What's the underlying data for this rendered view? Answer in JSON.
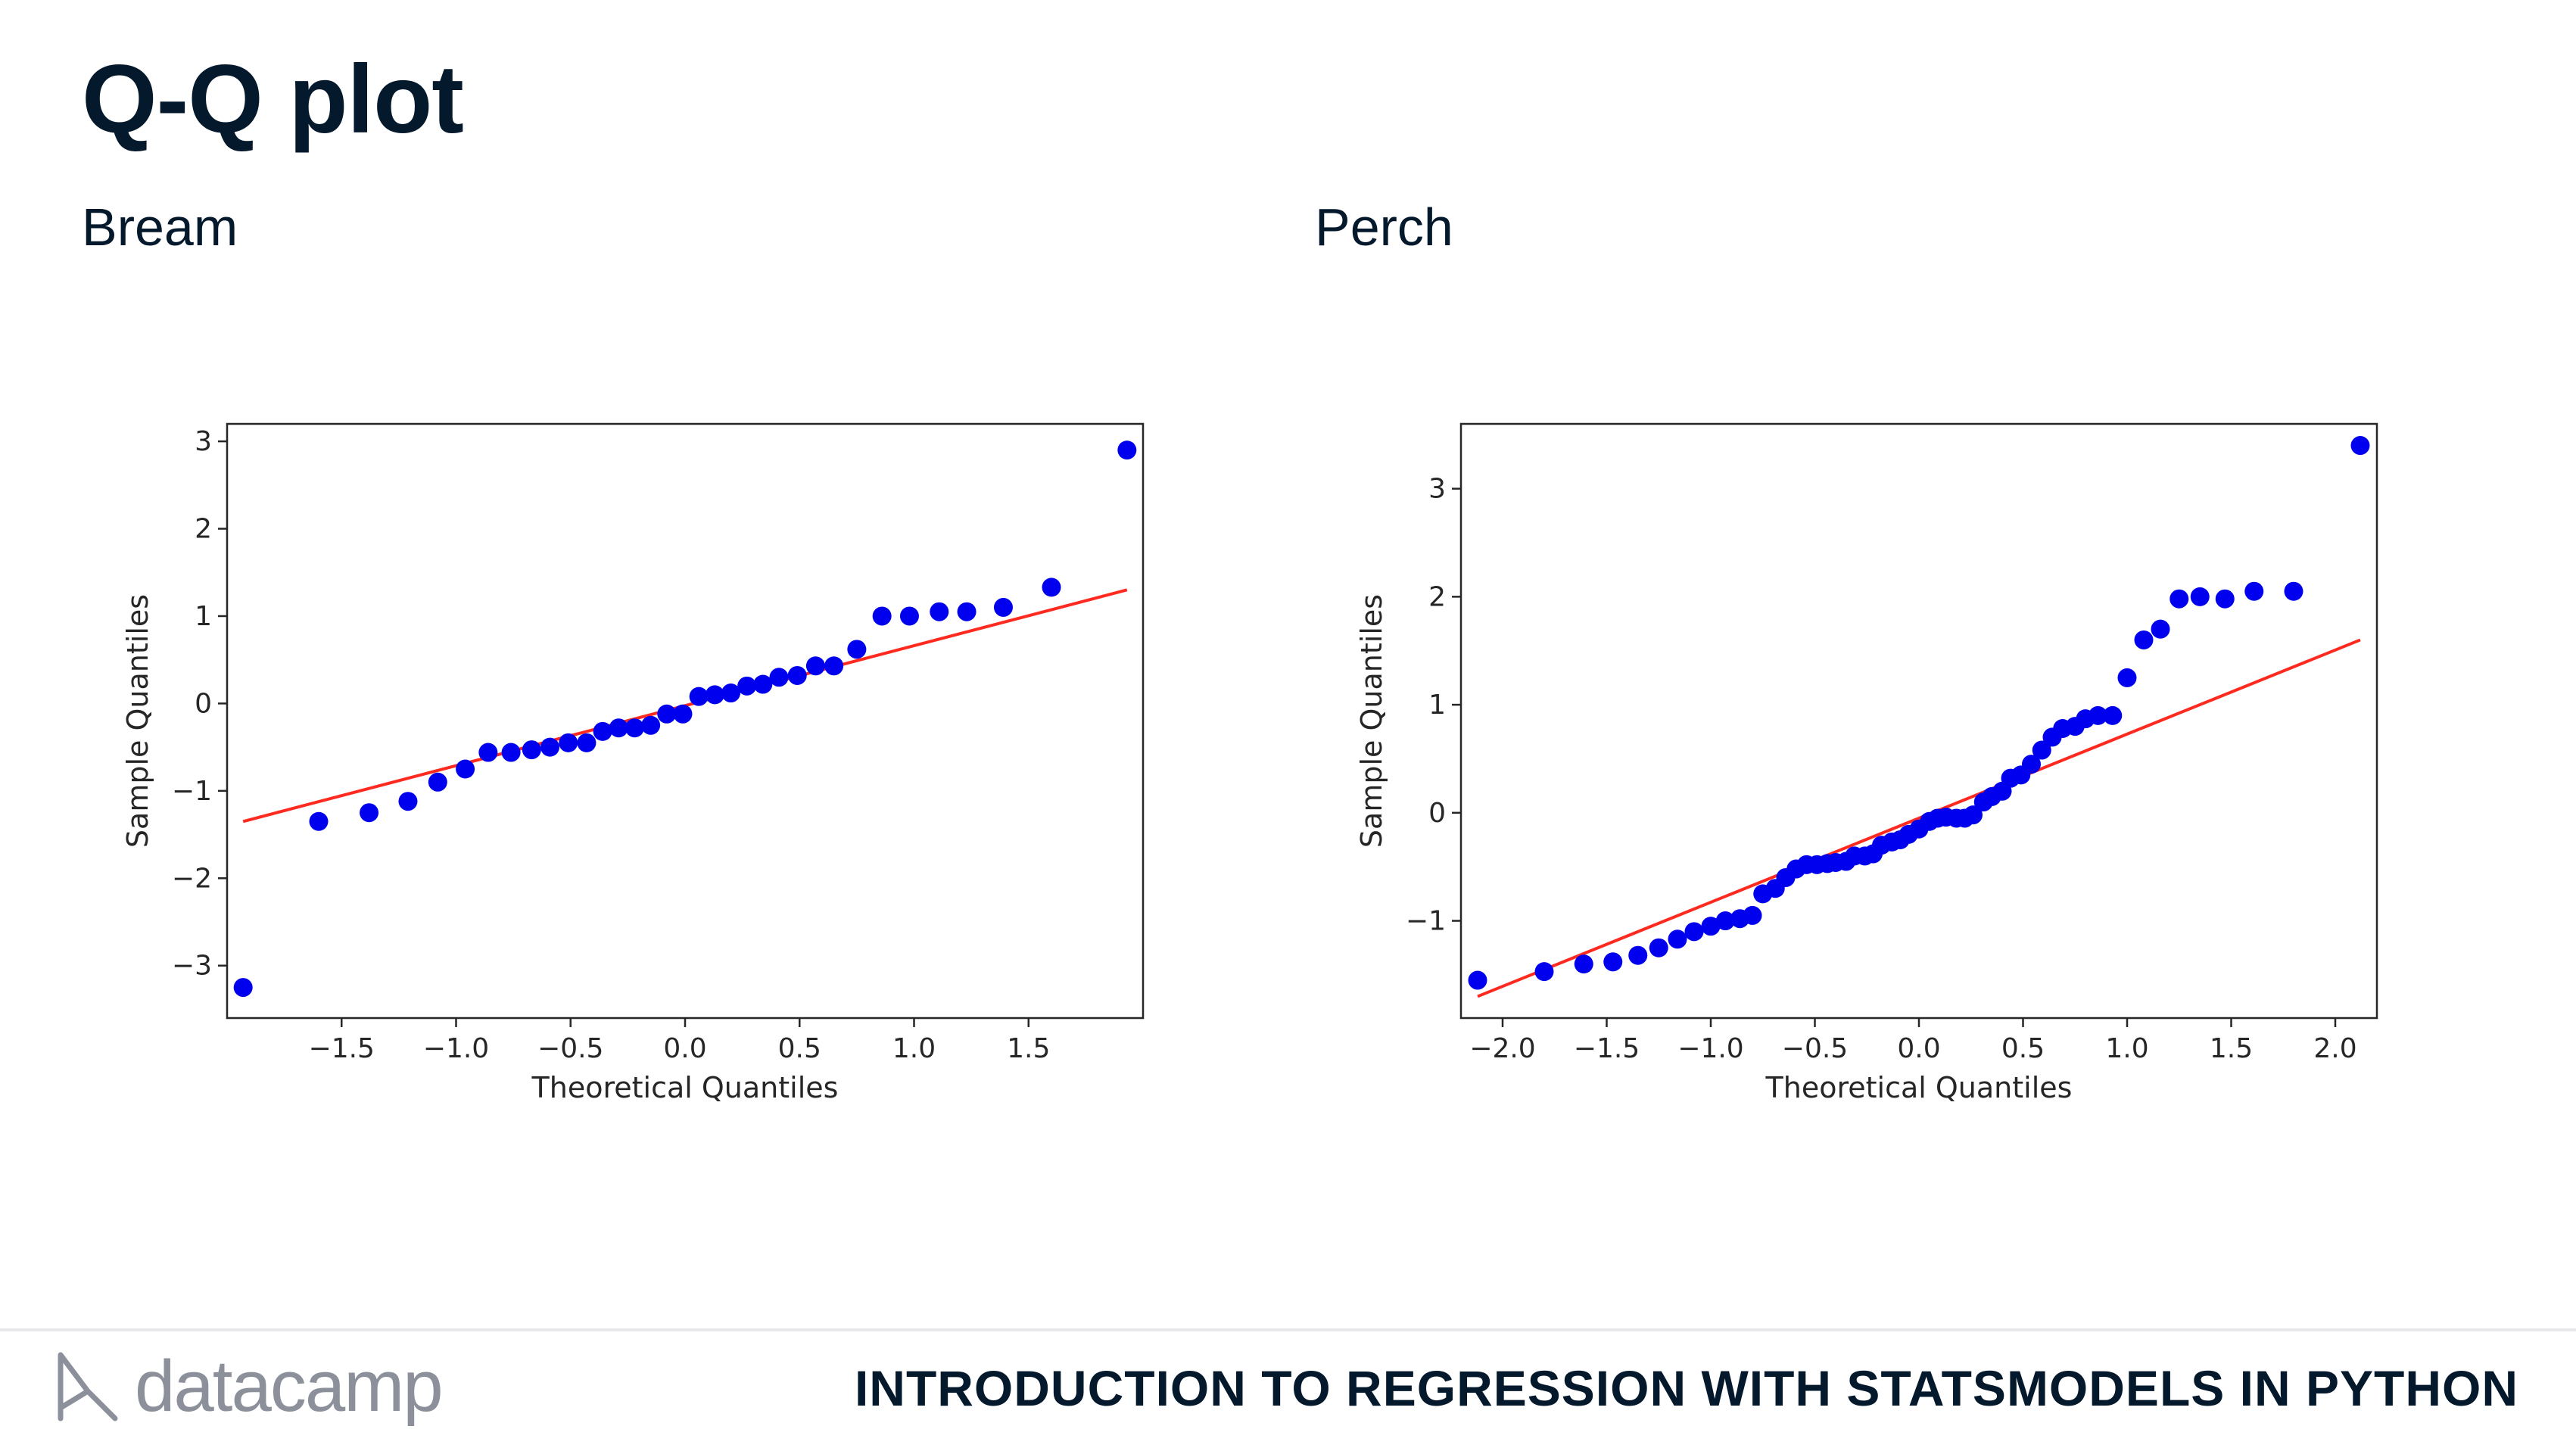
{
  "slide": {
    "title": "Q-Q plot",
    "footer_course": "INTRODUCTION TO REGRESSION WITH STATSMODELS IN PYTHON",
    "brand": "datacamp",
    "brand_icon": "datacamp-logo-icon"
  },
  "colors": {
    "points": "#0000ee",
    "reference_line": "#ff2a1f",
    "text": "#05192d",
    "footer_gray": "#8b909a"
  },
  "chart_data": [
    {
      "type": "scatter",
      "panel_label": "Bream",
      "xlabel": "Theoretical Quantiles",
      "ylabel": "Sample Quantiles",
      "xlim": [
        -2.0,
        2.0
      ],
      "ylim": [
        -3.6,
        3.2
      ],
      "xticks": [
        -1.5,
        -1.0,
        -0.5,
        0.0,
        0.5,
        1.0,
        1.5
      ],
      "xtick_labels": [
        "−1.5",
        "−1.0",
        "−0.5",
        "0.0",
        "0.5",
        "1.0",
        "1.5"
      ],
      "yticks": [
        -3,
        -2,
        -1,
        0,
        1,
        2,
        3
      ],
      "ytick_labels": [
        "−3",
        "−2",
        "−1",
        "0",
        "1",
        "2",
        "3"
      ],
      "reference_line": {
        "x": [
          -1.93,
          1.93
        ],
        "y": [
          -1.35,
          1.3
        ]
      },
      "points": {
        "x": [
          -1.93,
          -1.6,
          -1.38,
          -1.21,
          -1.08,
          -0.96,
          -0.86,
          -0.76,
          -0.67,
          -0.59,
          -0.51,
          -0.43,
          -0.36,
          -0.29,
          -0.22,
          -0.15,
          -0.08,
          -0.01,
          0.06,
          0.13,
          0.2,
          0.27,
          0.34,
          0.41,
          0.49,
          0.57,
          0.65,
          0.75,
          0.86,
          0.98,
          1.11,
          1.23,
          1.39,
          1.6,
          1.93
        ],
        "y": [
          -3.25,
          -1.35,
          -1.25,
          -1.12,
          -0.9,
          -0.75,
          -0.56,
          -0.56,
          -0.53,
          -0.5,
          -0.45,
          -0.45,
          -0.32,
          -0.28,
          -0.28,
          -0.25,
          -0.12,
          -0.12,
          0.08,
          0.1,
          0.12,
          0.2,
          0.22,
          0.3,
          0.32,
          0.43,
          0.43,
          0.62,
          1.0,
          1.0,
          1.05,
          1.05,
          1.1,
          1.33,
          2.9
        ]
      }
    },
    {
      "type": "scatter",
      "panel_label": "Perch",
      "xlabel": "Theoretical Quantiles",
      "ylabel": "Sample Quantiles",
      "xlim": [
        -2.2,
        2.2
      ],
      "ylim": [
        -1.9,
        3.6
      ],
      "xticks": [
        -2.0,
        -1.5,
        -1.0,
        -0.5,
        0.0,
        0.5,
        1.0,
        1.5,
        2.0
      ],
      "xtick_labels": [
        "−2.0",
        "−1.5",
        "−1.0",
        "−0.5",
        "0.0",
        "0.5",
        "1.0",
        "1.5",
        "2.0"
      ],
      "yticks": [
        -1,
        0,
        1,
        2,
        3
      ],
      "ytick_labels": [
        "−1",
        "0",
        "1",
        "2",
        "3"
      ],
      "reference_line": {
        "x": [
          -2.12,
          2.12
        ],
        "y": [
          -1.7,
          1.6
        ]
      },
      "points": {
        "x": [
          -2.12,
          -1.8,
          -1.61,
          -1.47,
          -1.35,
          -1.25,
          -1.16,
          -1.08,
          -1.0,
          -0.93,
          -0.86,
          -0.8,
          -0.75,
          -0.69,
          -0.64,
          -0.59,
          -0.54,
          -0.49,
          -0.44,
          -0.4,
          -0.35,
          -0.31,
          -0.26,
          -0.22,
          -0.18,
          -0.13,
          -0.09,
          -0.05,
          0.0,
          0.05,
          0.09,
          0.13,
          0.18,
          0.22,
          0.26,
          0.31,
          0.35,
          0.4,
          0.44,
          0.49,
          0.54,
          0.59,
          0.64,
          0.69,
          0.75,
          0.8,
          0.86,
          0.93,
          1.0,
          1.08,
          1.16,
          1.25,
          1.35,
          1.47,
          1.61,
          1.8,
          2.12
        ],
        "y": [
          -1.55,
          -1.47,
          -1.4,
          -1.38,
          -1.32,
          -1.25,
          -1.17,
          -1.1,
          -1.05,
          -1.0,
          -0.98,
          -0.95,
          -0.75,
          -0.7,
          -0.6,
          -0.52,
          -0.48,
          -0.48,
          -0.47,
          -0.46,
          -0.45,
          -0.4,
          -0.4,
          -0.38,
          -0.3,
          -0.27,
          -0.25,
          -0.2,
          -0.15,
          -0.08,
          -0.05,
          -0.04,
          -0.05,
          -0.05,
          -0.02,
          0.1,
          0.15,
          0.2,
          0.32,
          0.35,
          0.45,
          0.58,
          0.7,
          0.78,
          0.8,
          0.87,
          0.9,
          0.9,
          1.25,
          1.6,
          1.7,
          1.98,
          2.0,
          1.98,
          2.05,
          2.05,
          3.4
        ]
      }
    }
  ]
}
